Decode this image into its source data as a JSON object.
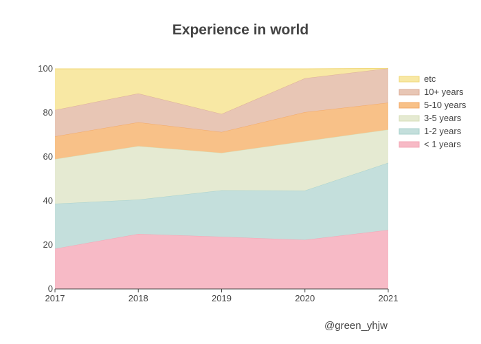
{
  "chart_data": {
    "type": "area",
    "stacked": true,
    "normalized": "percent",
    "title": "Experience in world",
    "xlabel": "",
    "ylabel": "",
    "x": [
      2017,
      2018,
      2019,
      2020,
      2021
    ],
    "ylim": [
      0,
      100
    ],
    "yticks": [
      0,
      20,
      40,
      60,
      80,
      100
    ],
    "grid": false,
    "legend_position": "right",
    "series": [
      {
        "name": "< 1 years",
        "color": "#f7bac6",
        "line": "#f3a6b5",
        "values": [
          18.3,
          25.0,
          23.7,
          22.3,
          26.8
        ]
      },
      {
        "name": "1-2 years",
        "color": "#c4dfdc",
        "line": "#a9d2cd",
        "values": [
          20.4,
          15.6,
          21.1,
          22.4,
          30.5
        ]
      },
      {
        "name": "3-5 years",
        "color": "#e5ead2",
        "line": "#d7dfb8",
        "values": [
          20.3,
          24.3,
          17.0,
          22.4,
          15.1
        ]
      },
      {
        "name": "5-10 years",
        "color": "#f8c188",
        "line": "#f2a968",
        "values": [
          10.3,
          10.8,
          9.5,
          13.2,
          12.2
        ]
      },
      {
        "name": "10+ years",
        "color": "#e8c6b5",
        "line": "#ddae98",
        "values": [
          12.0,
          13.1,
          8.2,
          15.4,
          15.6
        ]
      },
      {
        "name": "etc",
        "color": "#f8e8a4",
        "line": "#f1d97a",
        "values": [
          18.7,
          11.2,
          20.5,
          4.3,
          0.0
        ]
      }
    ]
  },
  "credit": "@green_yhjw"
}
